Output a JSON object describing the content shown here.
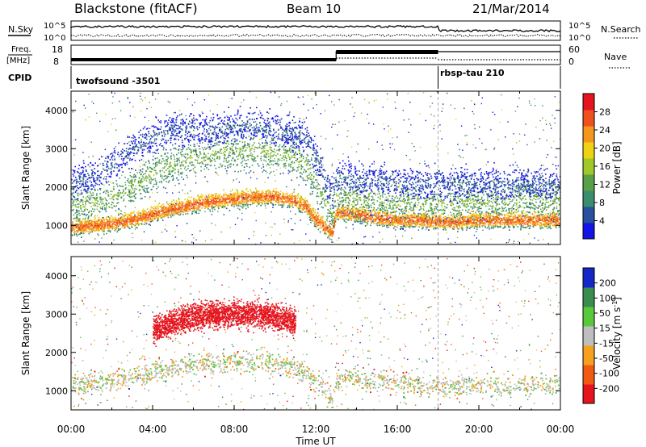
{
  "header": {
    "station": "Blackstone (fitACF)",
    "beam": "Beam 10",
    "date": "21/Mar/2014"
  },
  "noise_panel": {
    "left_label": "N.Sky",
    "right_label": "N.Search",
    "ticks": [
      "10^5",
      "10^0"
    ]
  },
  "freq_panel": {
    "left_label_1": "Freq.",
    "left_label_2": "[MHz]",
    "left_ticks": [
      "18",
      "8"
    ],
    "right_label": "Nave",
    "right_ticks": [
      "60",
      "0"
    ]
  },
  "cpid": {
    "label": "CPID",
    "segments": [
      {
        "name": "twofsound -3501",
        "start_hour": 0
      },
      {
        "name": "rbsp-tau 210",
        "start_hour": 18
      }
    ]
  },
  "xaxis": {
    "label": "Time UT",
    "ticks": [
      "00:00",
      "04:00",
      "08:00",
      "12:00",
      "16:00",
      "20:00",
      "00:00"
    ]
  },
  "colors": {
    "power": [
      "#1414e6",
      "#28509e",
      "#3c8c6e",
      "#5aa046",
      "#a0c828",
      "#f0d214",
      "#f5961e",
      "#f0501e",
      "#e6141e"
    ],
    "velocity": [
      "#e6141e",
      "#f05a14",
      "#f5a01e",
      "#bebebe",
      "#5ac83c",
      "#3c8c50",
      "#1428c8"
    ],
    "ground": "#bebebe"
  },
  "chart_data": [
    {
      "type": "heatmap",
      "title": "",
      "xlabel": "Time UT",
      "ylabel": "Slant Range [km]",
      "xlim": [
        0,
        24
      ],
      "ylim": [
        500,
        4500
      ],
      "yticks": [
        "4000",
        "3000",
        "2000",
        "1000"
      ],
      "colorbar_label": "Power [dB]",
      "colorbar_ticks": [
        "28",
        "24",
        "20",
        "16",
        "12",
        "8",
        "4"
      ],
      "colorbar_range": [
        0,
        32
      ],
      "bands": [
        {
          "x": [
            0,
            1,
            2,
            3,
            4,
            5,
            6,
            7,
            8,
            9,
            10,
            11,
            11.5,
            12,
            12.8,
            13,
            14,
            15,
            16,
            17,
            18,
            19,
            20,
            21,
            22,
            23,
            24
          ],
          "y": [
            950,
            1000,
            1050,
            1150,
            1300,
            1450,
            1550,
            1650,
            1700,
            1750,
            1750,
            1650,
            1500,
            1150,
            800,
            1350,
            1300,
            1200,
            1150,
            1150,
            1100,
            1100,
            1150,
            1150,
            1150,
            1150,
            1150
          ],
          "width": 300,
          "power": 26
        },
        {
          "x": [
            0,
            1,
            2,
            3,
            4,
            5,
            6,
            7,
            8,
            9,
            10,
            11,
            11.5,
            12,
            12.8,
            13,
            14,
            15,
            16,
            17,
            18,
            19,
            20,
            21,
            22,
            23,
            24
          ],
          "y": [
            1500,
            1600,
            1700,
            2000,
            2400,
            2600,
            2800,
            2900,
            2950,
            2950,
            2900,
            2800,
            2600,
            2100,
            1300,
            1800,
            1700,
            1700,
            1600,
            1600,
            1600,
            1600,
            1600,
            1600,
            1700,
            1650,
            1650
          ],
          "width": 700,
          "power": 14
        },
        {
          "x": [
            0,
            1,
            2,
            3,
            4,
            5,
            6,
            7,
            8,
            9,
            10,
            11,
            11.5,
            12,
            12.8,
            13,
            14,
            15,
            16,
            17,
            18,
            19,
            20,
            21,
            22,
            23,
            24
          ],
          "y": [
            2100,
            2300,
            2600,
            3000,
            3300,
            3500,
            3500,
            3500,
            3600,
            3600,
            3500,
            3400,
            3300,
            2800,
            1800,
            2300,
            2200,
            2200,
            2100,
            2100,
            2100,
            2100,
            2100,
            2100,
            2100,
            2100,
            2100
          ],
          "width": 600,
          "power": 6
        }
      ]
    },
    {
      "type": "heatmap",
      "title": "",
      "xlabel": "Time UT",
      "ylabel": "Slant Range [km]",
      "xlim": [
        0,
        24
      ],
      "ylim": [
        500,
        4500
      ],
      "yticks": [
        "4000",
        "3000",
        "2000",
        "1000"
      ],
      "colorbar_label": "Velocity [m s^-1]",
      "colorbar_ticks": [
        "200",
        "100",
        "50",
        "15",
        "-15",
        "-50",
        "-100",
        "-200"
      ],
      "colorbar_range": [
        -250,
        250
      ],
      "bands": [
        {
          "x": [
            0,
            2,
            4,
            6,
            8,
            10,
            11.5,
            12.8,
            13,
            16,
            18,
            20,
            24
          ],
          "y": [
            1150,
            1250,
            1500,
            1700,
            1750,
            1750,
            1500,
            800,
            1350,
            1200,
            1150,
            1150,
            1150
          ],
          "width": 400,
          "velocity": 0
        },
        {
          "x": [
            4,
            5,
            6,
            7,
            8,
            9,
            10,
            11
          ],
          "y": [
            2600,
            2800,
            2950,
            3000,
            3000,
            3000,
            2950,
            2800
          ],
          "width": 500,
          "velocity": -200
        }
      ]
    }
  ]
}
